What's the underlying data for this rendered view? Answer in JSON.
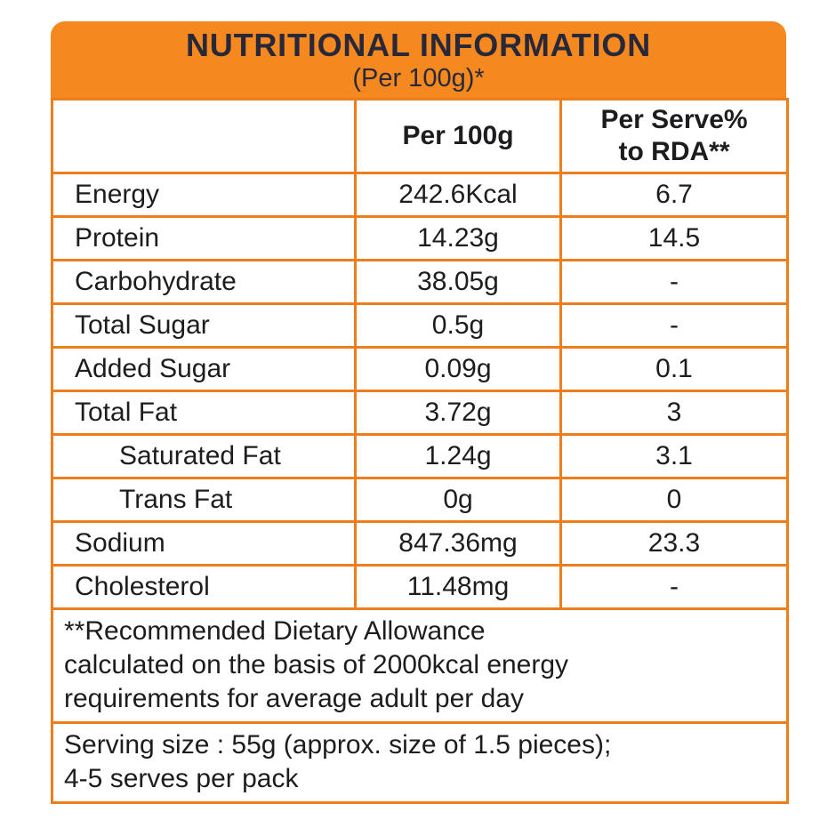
{
  "header": {
    "title": "NUTRITIONAL INFORMATION",
    "subtitle": "(Per 100g)*"
  },
  "table": {
    "col_per100g": "Per 100g",
    "col_per_serve_line1": "Per Serve%",
    "col_per_serve_line2": "to RDA**",
    "rows": [
      {
        "label": "Energy",
        "per100g": "242.6Kcal",
        "per_serve": "6.7",
        "indent": false
      },
      {
        "label": "Protein",
        "per100g": "14.23g",
        "per_serve": "14.5",
        "indent": false
      },
      {
        "label": "Carbohydrate",
        "per100g": "38.05g",
        "per_serve": "-",
        "indent": false
      },
      {
        "label": "Total Sugar",
        "per100g": "0.5g",
        "per_serve": "-",
        "indent": false
      },
      {
        "label": "Added Sugar",
        "per100g": "0.09g",
        "per_serve": "0.1",
        "indent": false
      },
      {
        "label": "Total Fat",
        "per100g": "3.72g",
        "per_serve": "3",
        "indent": false
      },
      {
        "label": "Saturated Fat",
        "per100g": "1.24g",
        "per_serve": "3.1",
        "indent": true
      },
      {
        "label": "Trans Fat",
        "per100g": "0g",
        "per_serve": "0",
        "indent": true
      },
      {
        "label": "Sodium",
        "per100g": "847.36mg",
        "per_serve": "23.3",
        "indent": false
      },
      {
        "label": "Cholesterol",
        "per100g": "11.48mg",
        "per_serve": "-",
        "indent": false
      }
    ]
  },
  "notes": {
    "rda_lines": [
      "**Recommended Dietary Allowance",
      "calculated on the basis of 2000kcal energy",
      "requirements for average adult per day"
    ],
    "serving_lines": [
      "Serving size : 55g (approx. size of 1.5 pieces);",
      "4-5 serves per pack"
    ]
  },
  "colors": {
    "orange_header": "#F5891F",
    "grid_border": "#EE7E1B",
    "title_text": "#27293A",
    "body_text": "#1D1D1F"
  }
}
